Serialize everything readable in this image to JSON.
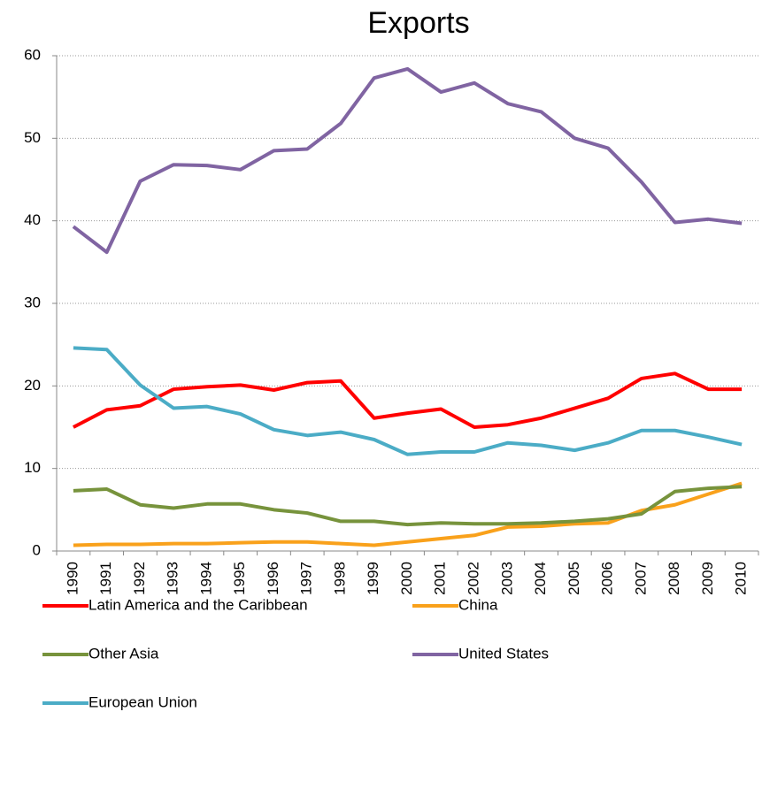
{
  "chart_data": {
    "type": "line",
    "title": "Exports",
    "categories": [
      "1990",
      "1991",
      "1992",
      "1993",
      "1994",
      "1995",
      "1996",
      "1997",
      "1998",
      "1999",
      "2000",
      "2001",
      "2002",
      "2003",
      "2004",
      "2005",
      "2006",
      "2007",
      "2008",
      "2009",
      "2010"
    ],
    "series": [
      {
        "name": "Latin America and the Caribbean",
        "color": "#ff0000",
        "values": [
          15.0,
          17.1,
          17.6,
          19.6,
          19.9,
          20.1,
          19.5,
          20.4,
          20.6,
          16.1,
          16.7,
          17.2,
          15.0,
          15.3,
          16.1,
          17.3,
          18.5,
          20.9,
          21.5,
          19.6,
          19.6
        ]
      },
      {
        "name": "China",
        "color": "#f9a11b",
        "values": [
          0.7,
          0.8,
          0.8,
          0.9,
          0.9,
          1.0,
          1.1,
          1.1,
          0.9,
          0.7,
          1.1,
          1.5,
          1.9,
          2.9,
          3.0,
          3.3,
          3.4,
          4.9,
          5.6,
          6.9,
          8.2
        ]
      },
      {
        "name": "Other Asia",
        "color": "#77933c",
        "values": [
          7.3,
          7.5,
          5.6,
          5.2,
          5.7,
          5.7,
          5.0,
          4.6,
          3.6,
          3.6,
          3.2,
          3.4,
          3.3,
          3.3,
          3.4,
          3.6,
          3.9,
          4.5,
          7.2,
          7.6,
          7.8
        ]
      },
      {
        "name": "United States",
        "color": "#8064a2",
        "values": [
          39.3,
          36.2,
          44.8,
          46.8,
          46.7,
          46.2,
          48.5,
          48.7,
          51.8,
          57.3,
          58.4,
          55.6,
          56.7,
          54.2,
          53.2,
          50.0,
          48.8,
          44.7,
          39.8,
          40.2,
          39.7
        ]
      },
      {
        "name": "European Union",
        "color": "#4bacc6",
        "values": [
          24.6,
          24.4,
          20.1,
          17.3,
          17.5,
          16.6,
          14.7,
          14.0,
          14.4,
          13.5,
          11.7,
          12.0,
          12.0,
          13.1,
          12.8,
          12.2,
          13.1,
          14.6,
          14.6,
          13.8,
          12.9
        ]
      }
    ],
    "ylim": [
      0,
      60
    ],
    "yticks": [
      0,
      10,
      20,
      30,
      40,
      50,
      60
    ],
    "grid": true,
    "legend": "bottom"
  }
}
